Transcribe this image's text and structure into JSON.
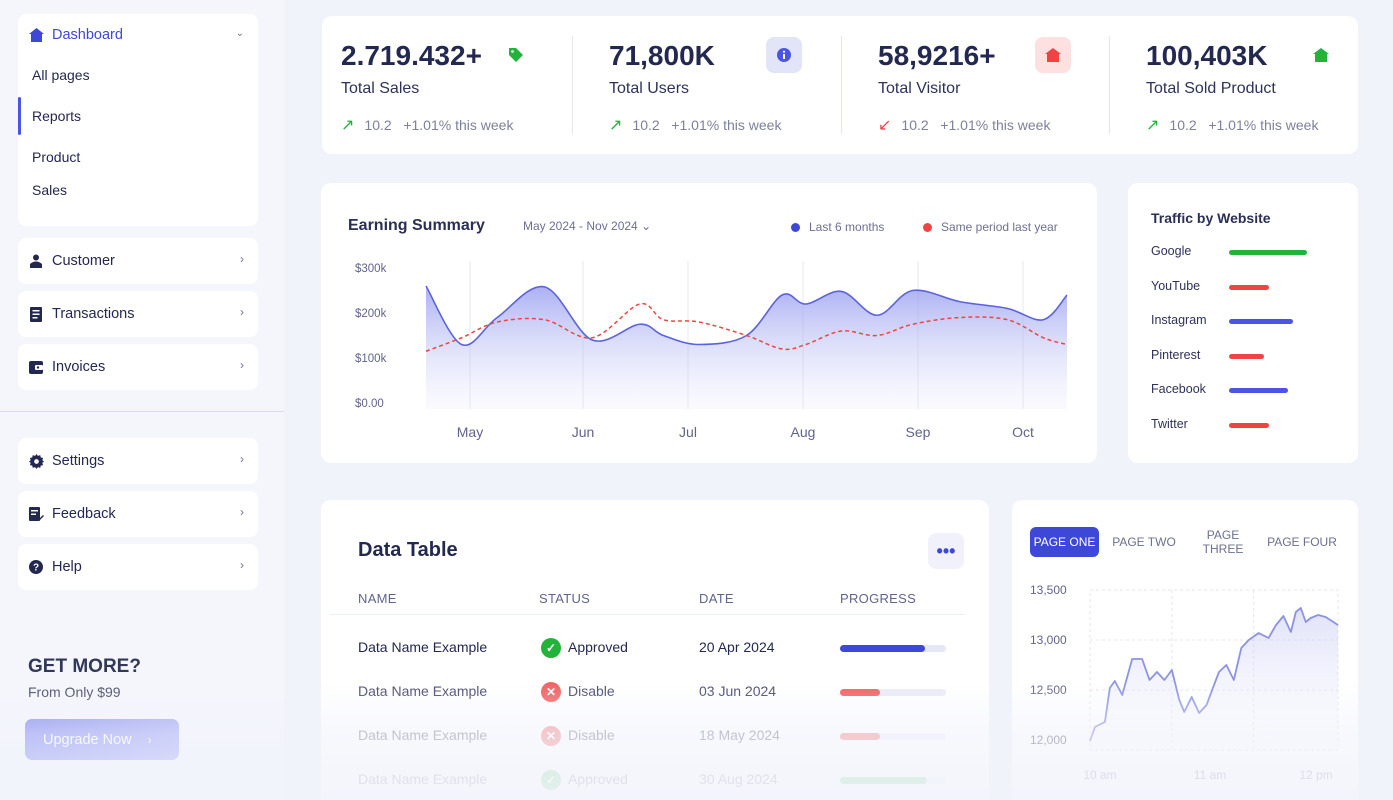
{
  "sidebar": {
    "dashboard": "Dashboard",
    "sub_items": [
      "All pages",
      "Reports",
      "Product",
      "Sales"
    ],
    "customer": "Customer",
    "transactions": "Transactions",
    "invoices": "Invoices",
    "settings": "Settings",
    "feedback": "Feedback",
    "help": "Help",
    "promo_title": "GET MORE?",
    "promo_sub": "From Only $99",
    "upgrade_label": "Upgrade Now",
    "accent": "#4a55e6"
  },
  "stats": [
    {
      "value": "2.719.432+",
      "label": "Total Sales",
      "change": "10.2",
      "note": "+1.01% this week",
      "direction": "up",
      "icon": "tag-icon",
      "badge_bg": "#d8f5dc",
      "icon_color": "#23b33a"
    },
    {
      "value": "71,800K",
      "label": "Total Users",
      "change": "10.2",
      "note": "+1.01% this week",
      "direction": "up",
      "icon": "info-icon",
      "badge_bg": "#e2e4f8",
      "icon_color": "#4a55e6"
    },
    {
      "value": "58,9216+",
      "label": "Total Visitor",
      "change": "10.2",
      "note": "+1.01% this week",
      "direction": "down",
      "icon": "home-icon",
      "badge_bg": "#fde0e0",
      "icon_color": "#ef4444"
    },
    {
      "value": "100,403K",
      "label": "Total Sold Product",
      "change": "10.2",
      "note": "+1.01% this week",
      "direction": "up",
      "icon": "home-icon",
      "badge_bg": "#d8f5dc",
      "icon_color": "#23b33a"
    }
  ],
  "earning": {
    "title": "Earning Summary",
    "range": "May 2024 - Nov 2024",
    "legend": [
      "Last 6 months",
      "Same period last year"
    ]
  },
  "traffic": {
    "title": "Traffic by Website",
    "items": [
      {
        "name": "Google",
        "level": 0.85,
        "color": "#22b33a"
      },
      {
        "name": "YouTube",
        "level": 0.43,
        "color": "#ef4444"
      },
      {
        "name": "Instagram",
        "level": 0.7,
        "color": "#4a55e6"
      },
      {
        "name": "Pinterest",
        "level": 0.38,
        "color": "#ef4444"
      },
      {
        "name": "Facebook",
        "level": 0.64,
        "color": "#4a55e6"
      },
      {
        "name": "Twitter",
        "level": 0.43,
        "color": "#ef4444"
      }
    ]
  },
  "table": {
    "title": "Data Table",
    "headers": [
      "NAME",
      "STATUS",
      "DATE",
      "PROGRESS"
    ],
    "rows": [
      {
        "name": "Data Name Example",
        "status": "Approved",
        "date": "20 Apr 2024",
        "progress": 0.8,
        "status_color": "#22b33a",
        "bar_color": "#3e48d8"
      },
      {
        "name": "Data Name Example",
        "status": "Disable",
        "date": "03 Jun 2024",
        "progress": 0.38,
        "status_color": "#ef4444",
        "bar_color": "#ef4444"
      },
      {
        "name": "Data Name Example",
        "status": "Disable",
        "date": "18 May 2024",
        "progress": 0.38,
        "status_color": "#ef4444",
        "bar_color": "#ef4444"
      },
      {
        "name": "Data Name Example",
        "status": "Approved",
        "date": "30 Aug 2024",
        "progress": 0.82,
        "status_color": "#22b33a",
        "bar_color": "#22b33a"
      }
    ]
  },
  "pages": {
    "tabs": [
      "PAGE ONE",
      "PAGE TWO",
      "PAGE THREE",
      "PAGE FOUR"
    ],
    "active_tab": "PAGE ONE"
  },
  "chart_data": [
    {
      "type": "area",
      "title": "Earning Summary",
      "categories": [
        "May",
        "Jun",
        "Jul",
        "Aug",
        "Sep",
        "Oct"
      ],
      "yticks": [
        "$0.00",
        "$100k",
        "$200k",
        "$300k"
      ],
      "ylim": [
        0,
        300
      ],
      "x": [
        0,
        0.3,
        0.6,
        1.0,
        1.4,
        1.8,
        2.0,
        2.3,
        2.7,
        3.0,
        3.2,
        3.5,
        3.8,
        4.1,
        4.5,
        4.9,
        5.2,
        5.4
      ],
      "series": [
        {
          "name": "Last 6 months",
          "color": "#5a63dc",
          "values": [
            260,
            130,
            190,
            258,
            140,
            175,
            150,
            130,
            150,
            240,
            220,
            248,
            195,
            250,
            225,
            210,
            185,
            240
          ]
        },
        {
          "name": "Same period last year",
          "color": "#ef4444",
          "values": [
            115,
            145,
            180,
            185,
            145,
            220,
            185,
            180,
            150,
            120,
            130,
            160,
            150,
            175,
            190,
            185,
            145,
            130
          ]
        }
      ],
      "grid": "vertical",
      "legend": "top-right"
    },
    {
      "type": "line",
      "yticks": [
        "12,000",
        "12,500",
        "13,000",
        "13,500"
      ],
      "ylim": [
        11900,
        13500
      ],
      "xticks": [
        "10 am",
        "11 am",
        "12 pm"
      ],
      "x": [
        0,
        0.02,
        0.06,
        0.08,
        0.1,
        0.13,
        0.17,
        0.21,
        0.24,
        0.27,
        0.3,
        0.33,
        0.36,
        0.38,
        0.41,
        0.44,
        0.47,
        0.5,
        0.52,
        0.55,
        0.58,
        0.61,
        0.64,
        0.68,
        0.72,
        0.75,
        0.78,
        0.81,
        0.83,
        0.85,
        0.87,
        0.89,
        0.92,
        0.95,
        1.0
      ],
      "series": [
        {
          "name": "",
          "color": "#8e93e0",
          "values": [
            11990,
            12130,
            12180,
            12520,
            12590,
            12450,
            12810,
            12810,
            12600,
            12680,
            12600,
            12700,
            12400,
            12280,
            12430,
            12270,
            12350,
            12550,
            12680,
            12750,
            12600,
            12920,
            13000,
            13070,
            13020,
            13150,
            13240,
            13080,
            13280,
            13320,
            13180,
            13220,
            13250,
            13230,
            13150
          ]
        }
      ],
      "grid": "both"
    }
  ]
}
